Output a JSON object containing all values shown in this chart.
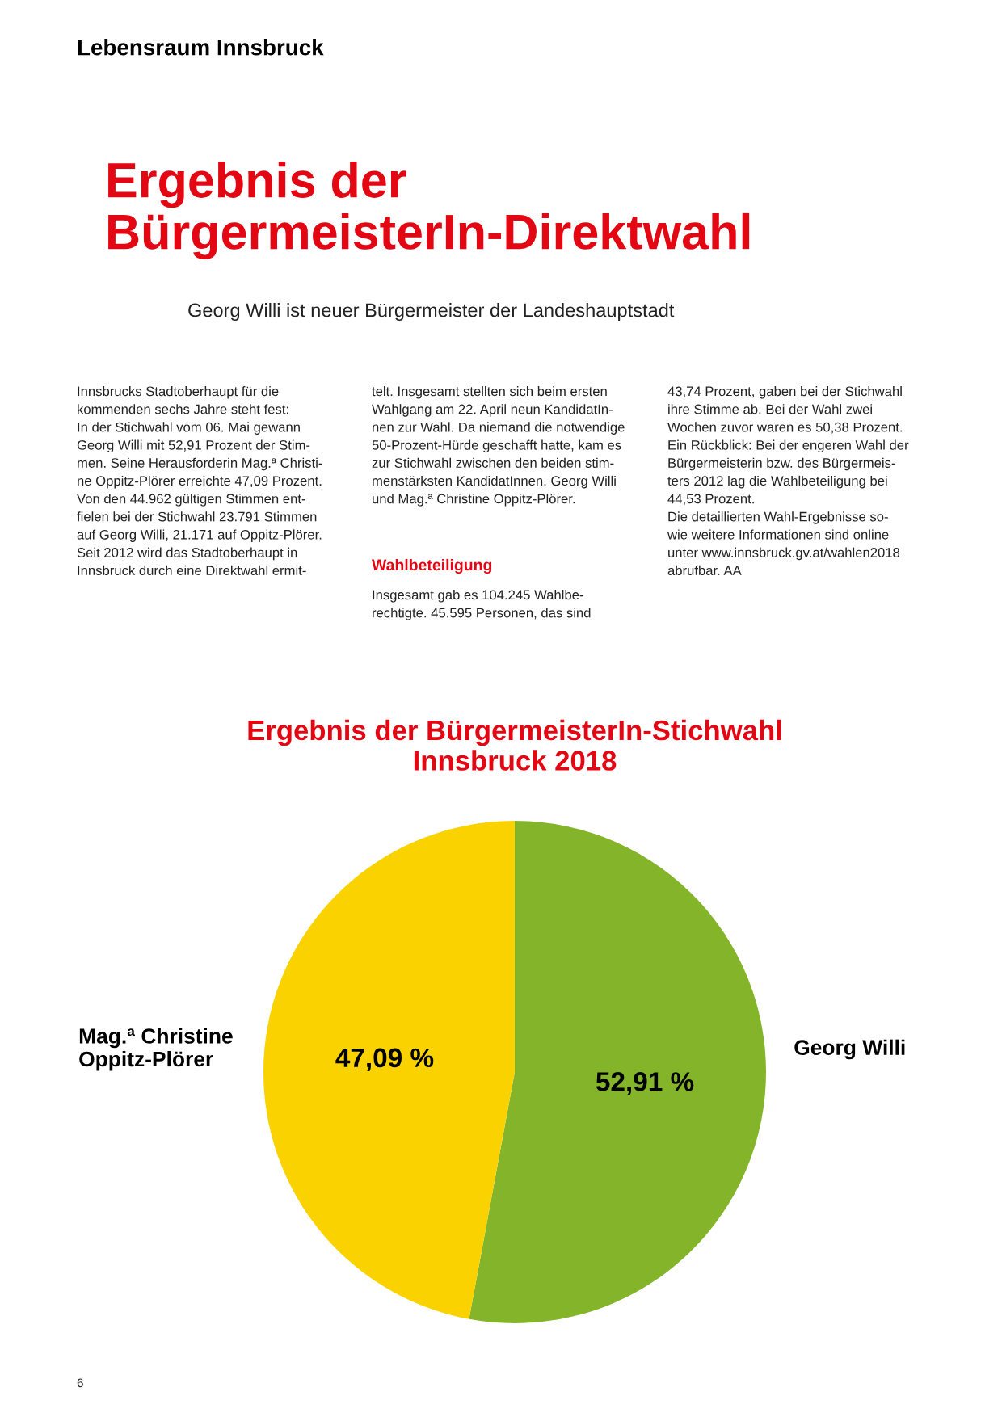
{
  "chart_data": {
    "type": "pie",
    "title": "Ergebnis der BürgermeisterIn-Stichwahl\nInnsbruck 2018",
    "categories": [
      "Georg Willi",
      "Mag.ª Christine\nOppitz-Plörer"
    ],
    "values": [
      52.91,
      47.09
    ],
    "colors": [
      "#84b42a",
      "#fad200"
    ],
    "value_labels": [
      "52,91 %",
      "47,09 %"
    ],
    "annotations": [
      "Lebensraum Innsbruck",
      "Ergebnis der\nBürgermeisterIn-Direktwahl",
      "Georg Willi ist neuer Bürgermeister der Landeshauptstadt",
      "Innsbrucks Stadtoberhaupt für die\nkommenden sechs Jahre steht fest:\nIn der Stichwahl vom 06. Mai gewann\nGeorg Willi mit 52,91 Prozent der Stim-\nmen. Seine Herausforderin Mag.ª Christi-\nne Oppitz-Plörer erreichte 47,09 Prozent.\nVon den 44.962 gültigen Stimmen ent-\nfielen bei der Stichwahl 23.791 Stimmen\nauf Georg Willi, 21.171 auf Oppitz-Plörer.\nSeit 2012 wird das Stadtoberhaupt in\nInnsbruck durch eine Direktwahl ermit-",
      "telt. Insgesamt stellten sich beim ersten\nWahlgang am 22. April neun KandidatIn-\nnen zur Wahl. Da niemand die notwendige\n50-Prozent-Hürde geschafft hatte, kam es\nzur Stichwahl zwischen den beiden stim-\nmenstärksten KandidatInnen, Georg Willi\nund Mag.ª Christine Oppitz-Plörer.",
      "Wahlbeteiligung",
      "Insgesamt gab es 104.245 Wahlbe-\nrechtigte. 45.595 Personen, das sind",
      "43,74 Prozent, gaben bei der Stichwahl\nihre Stimme ab. Bei der Wahl zwei\nWochen zuvor waren es 50,38 Prozent.\nEin Rückblick: Bei der engeren Wahl der\nBürgermeisterin bzw. des Bürgermeis-\nters 2012 lag die Wahlbeteiligung bei\n44,53 Prozent.\nDie detaillierten Wahl-Ergebnisse so-\nwie weitere Informationen sind online\nunter www.innsbruck.gv.at/wahlen2018\nabrufbar. AA",
      "6"
    ]
  }
}
